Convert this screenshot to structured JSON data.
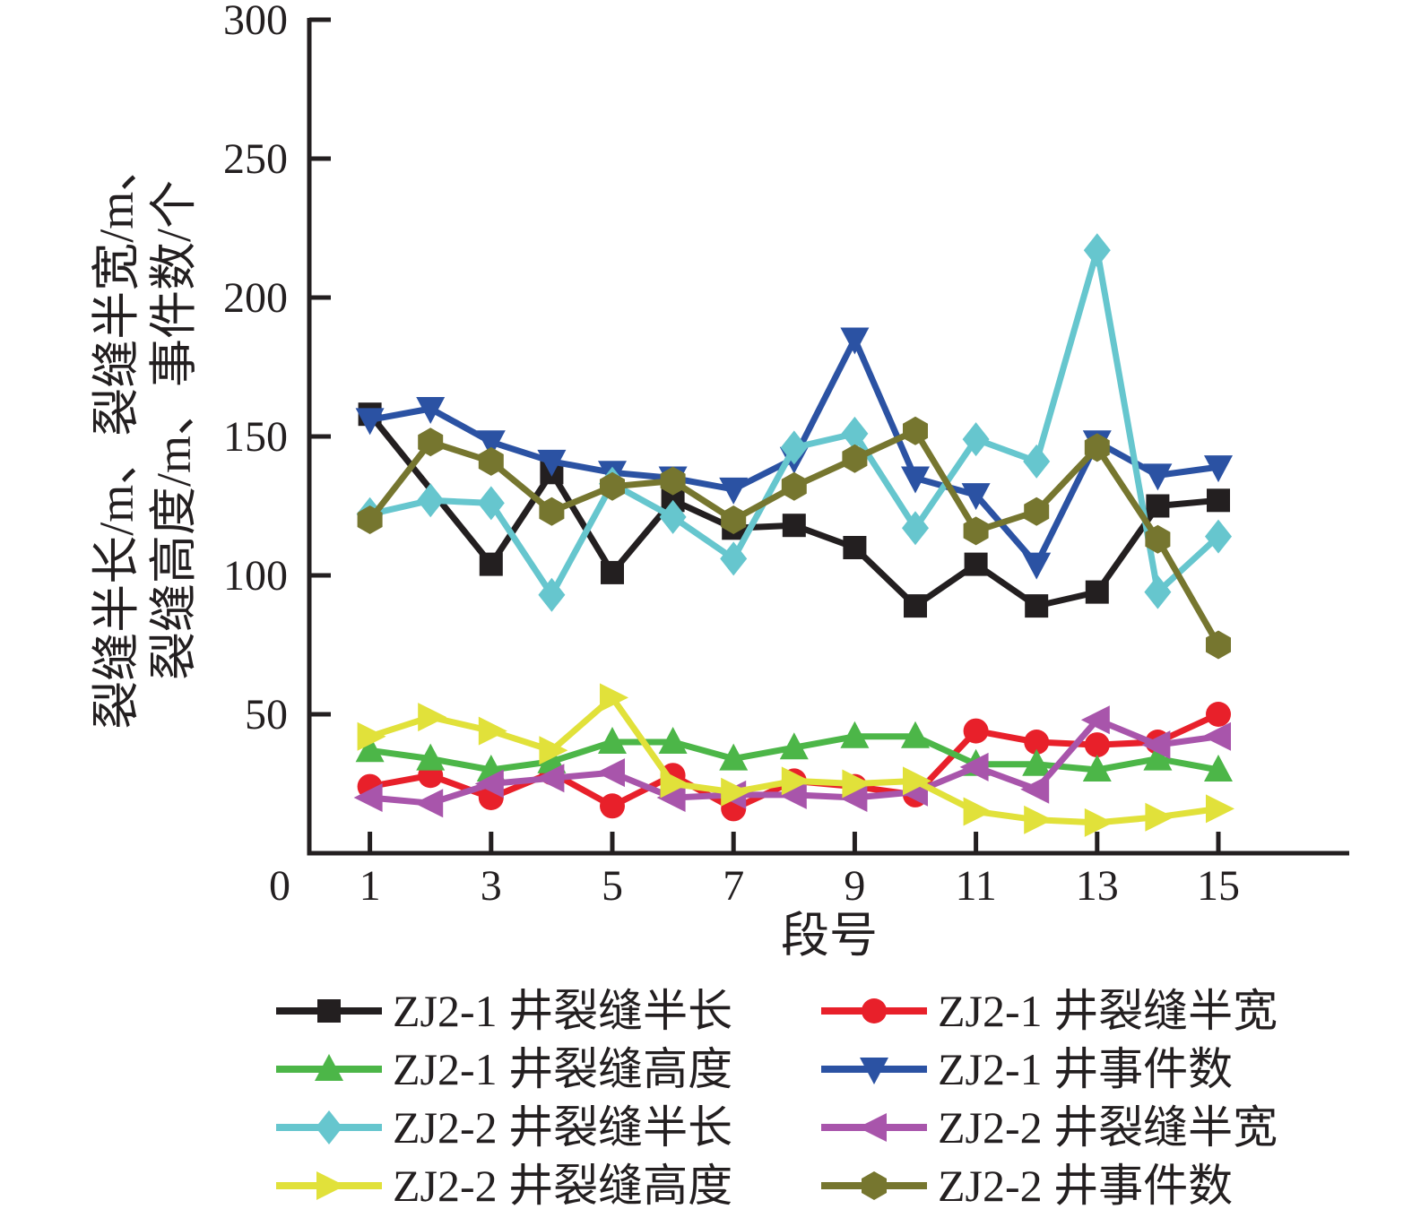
{
  "figure": {
    "background": "#ffffff",
    "xlabel": "段号",
    "ylabel_line1": "裂缝半长/m、裂缝半宽/m、",
    "ylabel_line2": "裂缝高度/m、事件数/个",
    "origin_label": "0"
  },
  "chart_data": {
    "type": "line",
    "title": "",
    "xlabel": "段号",
    "ylabel": "裂缝半长/m、裂缝半宽/m、裂缝高度/m、事件数/个",
    "xlim": [
      0,
      17.2
    ],
    "ylim": [
      0,
      300
    ],
    "grid": false,
    "legend_position": "below",
    "x": [
      1,
      2,
      3,
      4,
      5,
      6,
      7,
      8,
      9,
      10,
      11,
      12,
      13,
      14,
      15
    ],
    "x_tick_values": [
      0,
      1,
      3,
      5,
      7,
      9,
      11,
      13,
      15
    ],
    "y_tick_values": [
      50,
      100,
      150,
      200,
      250,
      300
    ],
    "series": [
      {
        "name": "ZJ2-1 井裂缝半长",
        "color": "#231f20",
        "marker": "square",
        "values": [
          158,
          null,
          104,
          137,
          101,
          127,
          117,
          118,
          110,
          89,
          104,
          89,
          94,
          125,
          127
        ]
      },
      {
        "name": "ZJ2-1 井裂缝半宽",
        "color": "#e8202a",
        "marker": "circle",
        "values": [
          24,
          28,
          20,
          29,
          17,
          28,
          16,
          26,
          24,
          21,
          44,
          40,
          39,
          40,
          50
        ]
      },
      {
        "name": "ZJ2-1 井裂缝高度",
        "color": "#4cb648",
        "marker": "triangle-up",
        "values": [
          37,
          34,
          30,
          33,
          40,
          40,
          34,
          38,
          42,
          42,
          32,
          32,
          30,
          34,
          30
        ]
      },
      {
        "name": "ZJ2-1 井事件数",
        "color": "#2b52a3",
        "marker": "triangle-down",
        "values": [
          156,
          160,
          148,
          141,
          137,
          135,
          131,
          142,
          185,
          135,
          129,
          104,
          148,
          136,
          139
        ]
      },
      {
        "name": "ZJ2-2 井裂缝半长",
        "color": "#66c6ce",
        "marker": "diamond",
        "values": [
          122,
          127,
          126,
          93,
          133,
          121,
          106,
          146,
          151,
          117,
          149,
          141,
          217,
          94,
          114
        ]
      },
      {
        "name": "ZJ2-2 井裂缝半宽",
        "color": "#a855ab",
        "marker": "triangle-left",
        "values": [
          20,
          18,
          25,
          27,
          29,
          20,
          21,
          21,
          20,
          22,
          31,
          23,
          48,
          39,
          42
        ]
      },
      {
        "name": "ZJ2-2 井裂缝高度",
        "color": "#e1e13a",
        "marker": "triangle-right",
        "values": [
          42,
          49,
          44,
          37,
          56,
          25,
          22,
          26,
          25,
          26,
          15,
          12,
          11,
          13,
          16
        ]
      },
      {
        "name": "ZJ2-2 井事件数",
        "color": "#76762f",
        "marker": "hexagon",
        "values": [
          120,
          148,
          141,
          123,
          132,
          134,
          120,
          132,
          142,
          152,
          116,
          123,
          146,
          113,
          75
        ]
      }
    ]
  }
}
